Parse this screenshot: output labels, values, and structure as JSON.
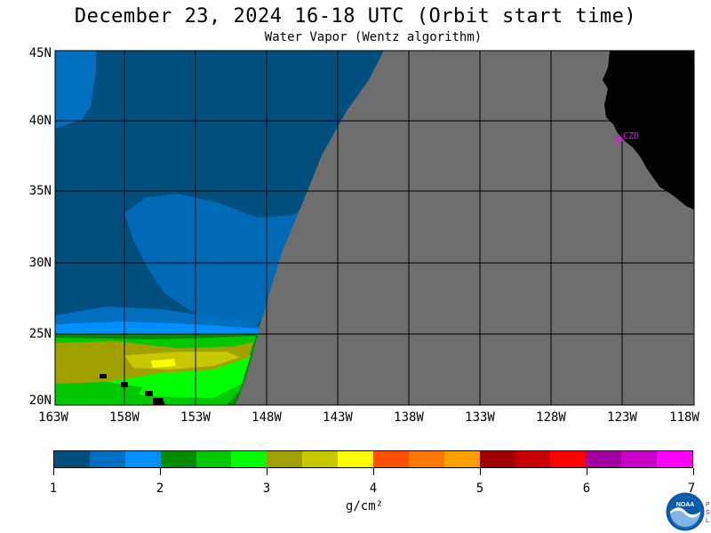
{
  "header": {
    "title": "December 23, 2024  16-18 UTC  (Orbit start time)",
    "subtitle": "Water Vapor (Wentz algorithm)"
  },
  "map": {
    "lat_labels": [
      "45N",
      "40N",
      "35N",
      "30N",
      "25N",
      "20N"
    ],
    "lon_labels": [
      "163W",
      "158W",
      "153W",
      "148W",
      "143W",
      "138W",
      "133W",
      "128W",
      "123W",
      "118W"
    ],
    "station_label": "CZD",
    "colors": {
      "no_data": "#6e6e6e",
      "land": "#000000",
      "station": "#ff00ff"
    }
  },
  "colorbar": {
    "labels": [
      "1",
      "2",
      "3",
      "4",
      "5",
      "6",
      "7"
    ],
    "units": "g/cm²",
    "colors": [
      "#004f7f",
      "#006fbf",
      "#008fff",
      "#008c00",
      "#00c800",
      "#00ff00",
      "#a0a000",
      "#c8c800",
      "#ffff00",
      "#ff5000",
      "#ff7800",
      "#ffa000",
      "#a00000",
      "#c80000",
      "#ff0000",
      "#a000a0",
      "#c800c8",
      "#ff00ff"
    ]
  },
  "logo": {
    "name": "NOAA"
  }
}
